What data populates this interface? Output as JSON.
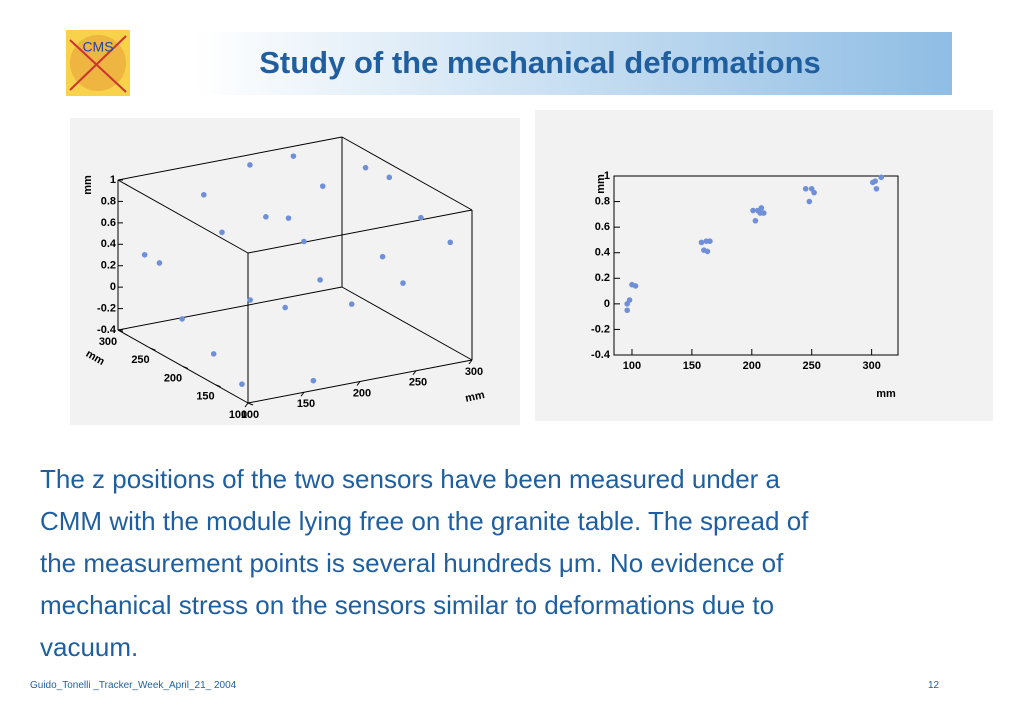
{
  "logo": "CMS",
  "title": "Study of the mechanical deformations",
  "body": [
    "The z positions of the two sensors have been measured under a",
    "CMM with the module lying free on the granite table. The spread of",
    "the measurement points is several hundreds μm. No evidence of",
    "mechanical stress on the sensors similar to deformations due to",
    "vacuum."
  ],
  "footer": {
    "left": "Guido_Tonelli _Tracker_Week_April_21_ 2004",
    "right": "12"
  },
  "chart_data": [
    {
      "type": "scatter3d",
      "color": "#6f8fd8",
      "x_label": "mm",
      "y_label": "mm",
      "z_label": "mm",
      "xlim": [
        100,
        300
      ],
      "ylim": [
        100,
        300
      ],
      "zlim": [
        -0.4,
        1
      ],
      "xticks": [
        100,
        150,
        200,
        250,
        300
      ],
      "yticks": [
        100,
        150,
        200,
        250,
        300
      ],
      "zticks": [
        -0.4,
        -0.2,
        0,
        0.2,
        0.4,
        0.6,
        0.8,
        1
      ],
      "x": [
        105,
        110,
        108,
        112,
        118,
        160,
        165,
        170,
        158,
        168,
        200,
        205,
        203,
        210,
        212,
        208,
        245,
        250,
        248,
        255,
        290,
        295,
        292,
        298
      ],
      "y": [
        210,
        170,
        250,
        130,
        290,
        200,
        280,
        120,
        240,
        160,
        210,
        170,
        250,
        130,
        290,
        200,
        280,
        120,
        240,
        160,
        210,
        170,
        250,
        130
      ],
      "z": [
        0.0,
        -0.2,
        0.38,
        -0.35,
        0.3,
        0.1,
        0.8,
        -0.4,
        0.6,
        0.15,
        0.75,
        0.3,
        0.62,
        0.2,
        0.95,
        0.55,
        1.0,
        0.35,
        0.85,
        0.45,
        0.95,
        0.7,
        0.9,
        0.6
      ]
    },
    {
      "type": "scatter",
      "color": "#6f8fd8",
      "x_label": "mm",
      "y_label": "mm",
      "xlim": [
        85,
        322
      ],
      "ylim": [
        -0.4,
        1
      ],
      "xticks": [
        100,
        150,
        200,
        250,
        300
      ],
      "yticks": [
        -0.4,
        -0.2,
        0,
        0.2,
        0.4,
        0.6,
        0.8,
        1
      ],
      "x": [
        96,
        98,
        96,
        100,
        103,
        158,
        162,
        165,
        160,
        163,
        201,
        205,
        203,
        208,
        210,
        207,
        245,
        250,
        248,
        252,
        301,
        303,
        304,
        308
      ],
      "y": [
        0.0,
        0.03,
        -0.05,
        0.15,
        0.14,
        0.48,
        0.49,
        0.49,
        0.42,
        0.41,
        0.73,
        0.73,
        0.65,
        0.75,
        0.71,
        0.71,
        0.9,
        0.9,
        0.8,
        0.87,
        0.95,
        0.96,
        0.9,
        0.99
      ]
    }
  ]
}
